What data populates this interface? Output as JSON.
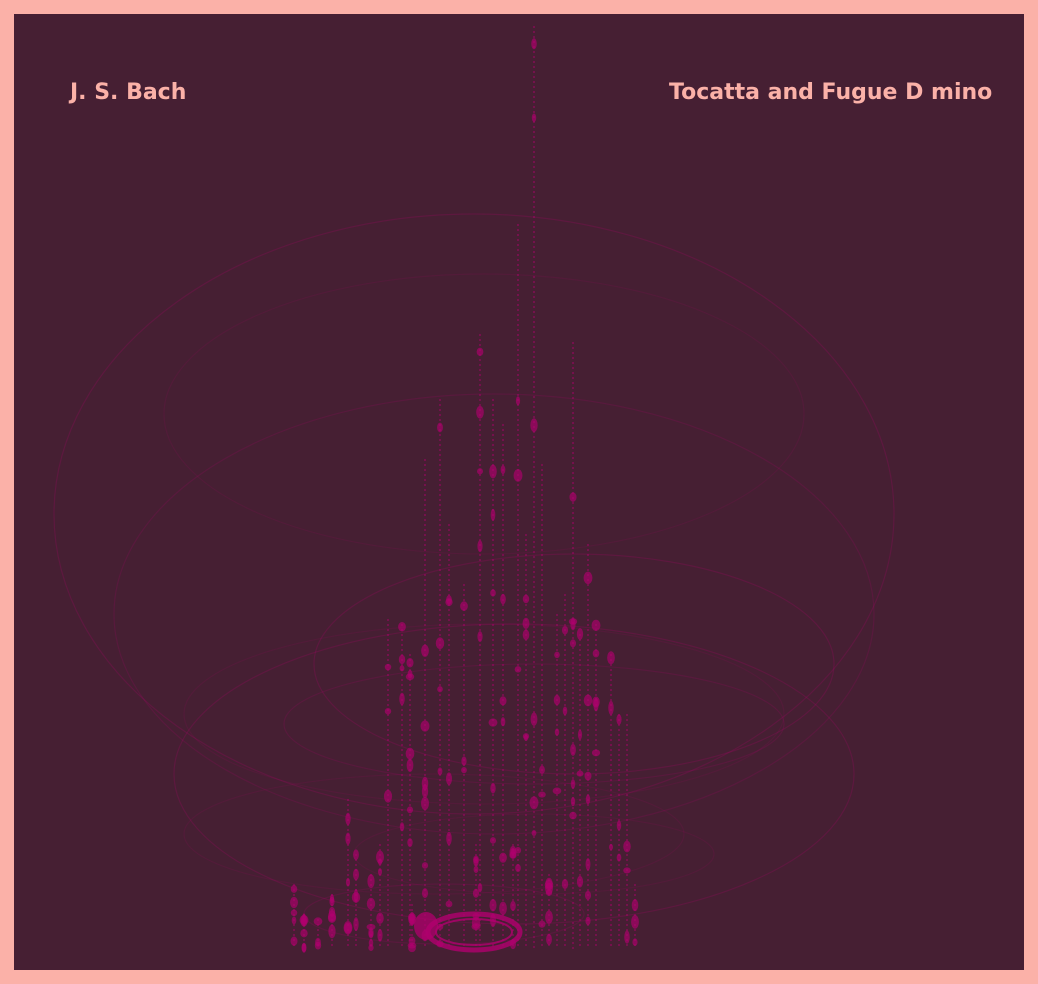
{
  "poster": {
    "composer": "J. S. Bach",
    "title": "Tocatta and Fugue D mino"
  },
  "colors": {
    "border": "#fbb1a8",
    "background": "#461f33",
    "text": "#fbb1a8",
    "accent": "#b0006e"
  }
}
